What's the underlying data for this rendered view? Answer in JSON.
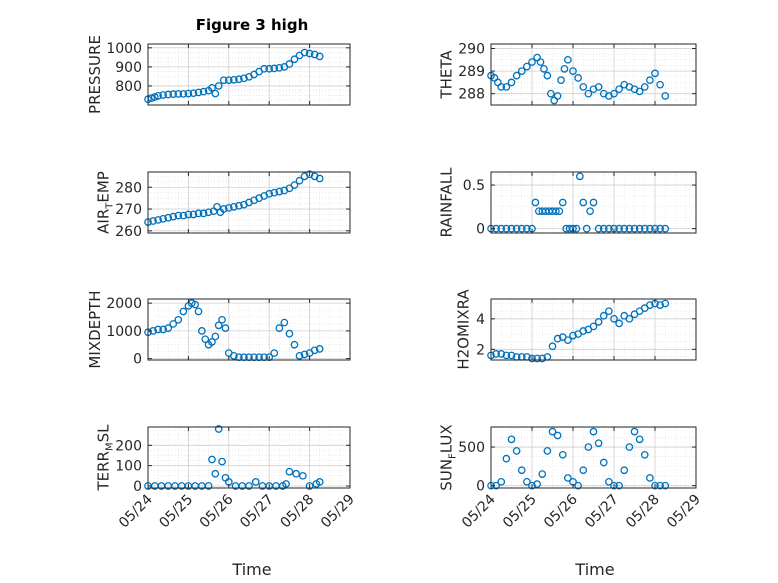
{
  "figure": {
    "title": "Figure 3 high",
    "xlabel": "Time"
  },
  "x_ticks": [
    "05/24",
    "05/25",
    "05/26",
    "05/27",
    "05/28",
    "05/29"
  ],
  "chart_data": [
    {
      "type": "scatter",
      "ylabel_main": "PRESSURE",
      "ylabel_sub": "",
      "ylim": [
        700,
        1020
      ],
      "yticks": [
        800,
        900,
        1000
      ],
      "x": [
        "2024-05-24 00:00",
        "2024-05-24 02:00",
        "2024-05-24 04:00",
        "2024-05-24 06:00",
        "2024-05-24 09:00",
        "2024-05-24 12:00",
        "2024-05-24 15:00",
        "2024-05-24 18:00",
        "2024-05-24 21:00",
        "2024-05-25 00:00",
        "2024-05-25 03:00",
        "2024-05-25 06:00",
        "2024-05-25 09:00",
        "2024-05-25 12:00",
        "2024-05-25 14:00",
        "2024-05-25 16:00",
        "2024-05-25 18:00",
        "2024-05-25 21:00",
        "2024-05-26 00:00",
        "2024-05-26 03:00",
        "2024-05-26 06:00",
        "2024-05-26 09:00",
        "2024-05-26 12:00",
        "2024-05-26 15:00",
        "2024-05-26 18:00",
        "2024-05-26 21:00",
        "2024-05-27 00:00",
        "2024-05-27 03:00",
        "2024-05-27 06:00",
        "2024-05-27 09:00",
        "2024-05-27 12:00",
        "2024-05-27 15:00",
        "2024-05-27 18:00",
        "2024-05-27 21:00",
        "2024-05-28 00:00",
        "2024-05-28 03:00",
        "2024-05-28 06:00"
      ],
      "y": [
        730,
        736,
        742,
        748,
        752,
        755,
        757,
        758,
        758,
        760,
        762,
        766,
        770,
        775,
        790,
        760,
        800,
        830,
        830,
        832,
        835,
        840,
        848,
        860,
        875,
        890,
        890,
        892,
        895,
        900,
        915,
        940,
        960,
        975,
        970,
        965,
        955
      ]
    },
    {
      "type": "scatter",
      "ylabel_main": "THETA",
      "ylabel_sub": "",
      "ylim": [
        287.5,
        290.2
      ],
      "yticks": [
        288,
        289,
        290
      ],
      "x": [
        "2024-05-24 00:00",
        "2024-05-24 02:00",
        "2024-05-24 04:00",
        "2024-05-24 06:00",
        "2024-05-24 09:00",
        "2024-05-24 12:00",
        "2024-05-24 15:00",
        "2024-05-24 18:00",
        "2024-05-24 21:00",
        "2024-05-25 00:00",
        "2024-05-25 03:00",
        "2024-05-25 05:00",
        "2024-05-25 07:00",
        "2024-05-25 09:00",
        "2024-05-25 11:00",
        "2024-05-25 13:00",
        "2024-05-25 15:00",
        "2024-05-25 17:00",
        "2024-05-25 19:00",
        "2024-05-25 21:00",
        "2024-05-26 00:00",
        "2024-05-26 03:00",
        "2024-05-26 06:00",
        "2024-05-26 09:00",
        "2024-05-26 12:00",
        "2024-05-26 15:00",
        "2024-05-26 18:00",
        "2024-05-26 21:00",
        "2024-05-27 00:00",
        "2024-05-27 03:00",
        "2024-05-27 06:00",
        "2024-05-27 09:00",
        "2024-05-27 12:00",
        "2024-05-27 15:00",
        "2024-05-27 18:00",
        "2024-05-27 21:00",
        "2024-05-28 00:00",
        "2024-05-28 03:00",
        "2024-05-28 06:00"
      ],
      "y": [
        288.8,
        288.7,
        288.5,
        288.3,
        288.3,
        288.5,
        288.8,
        289.0,
        289.2,
        289.4,
        289.6,
        289.4,
        289.1,
        288.8,
        288.0,
        287.7,
        287.9,
        288.6,
        289.1,
        289.5,
        289.0,
        288.7,
        288.3,
        288.0,
        288.2,
        288.3,
        288.0,
        287.9,
        288.0,
        288.2,
        288.4,
        288.3,
        288.2,
        288.1,
        288.3,
        288.6,
        288.9,
        288.4,
        287.9
      ]
    },
    {
      "type": "scatter",
      "ylabel_main": "AIR",
      "ylabel_sub": "T",
      "ylabel_tail": "EMP",
      "ylim": [
        259,
        287
      ],
      "yticks": [
        260,
        270,
        280
      ],
      "x": [
        "2024-05-24 00:00",
        "2024-05-24 03:00",
        "2024-05-24 06:00",
        "2024-05-24 09:00",
        "2024-05-24 12:00",
        "2024-05-24 15:00",
        "2024-05-24 18:00",
        "2024-05-24 21:00",
        "2024-05-25 00:00",
        "2024-05-25 03:00",
        "2024-05-25 06:00",
        "2024-05-25 09:00",
        "2024-05-25 12:00",
        "2024-05-25 15:00",
        "2024-05-25 17:00",
        "2024-05-25 19:00",
        "2024-05-25 21:00",
        "2024-05-26 00:00",
        "2024-05-26 03:00",
        "2024-05-26 06:00",
        "2024-05-26 09:00",
        "2024-05-26 12:00",
        "2024-05-26 15:00",
        "2024-05-26 18:00",
        "2024-05-26 21:00",
        "2024-05-27 00:00",
        "2024-05-27 03:00",
        "2024-05-27 06:00",
        "2024-05-27 09:00",
        "2024-05-27 12:00",
        "2024-05-27 15:00",
        "2024-05-27 18:00",
        "2024-05-27 21:00",
        "2024-05-28 00:00",
        "2024-05-28 03:00",
        "2024-05-28 06:00"
      ],
      "y": [
        264,
        264.5,
        265,
        265.5,
        266,
        266.5,
        267,
        267,
        267.5,
        267.5,
        268,
        268,
        268.5,
        269,
        271,
        268.5,
        270,
        270.5,
        271,
        271.5,
        272,
        273,
        274,
        275,
        276,
        277,
        277.5,
        278,
        278.5,
        279.5,
        281,
        283,
        285,
        286,
        285,
        284
      ]
    },
    {
      "type": "scatter",
      "ylabel_main": "RAINFALL",
      "ylabel_sub": "",
      "ylim": [
        -0.05,
        0.65
      ],
      "yticks": [
        0,
        0.5
      ],
      "x": [
        "2024-05-24 00:00",
        "2024-05-24 03:00",
        "2024-05-24 06:00",
        "2024-05-24 09:00",
        "2024-05-24 12:00",
        "2024-05-24 15:00",
        "2024-05-24 18:00",
        "2024-05-24 21:00",
        "2024-05-25 00:00",
        "2024-05-25 02:00",
        "2024-05-25 04:00",
        "2024-05-25 06:00",
        "2024-05-25 08:00",
        "2024-05-25 10:00",
        "2024-05-25 12:00",
        "2024-05-25 14:00",
        "2024-05-25 16:00",
        "2024-05-25 18:00",
        "2024-05-25 20:00",
        "2024-05-25 22:00",
        "2024-05-26 00:00",
        "2024-05-26 02:00",
        "2024-05-26 04:00",
        "2024-05-26 06:00",
        "2024-05-26 08:00",
        "2024-05-26 10:00",
        "2024-05-26 12:00",
        "2024-05-26 15:00",
        "2024-05-26 18:00",
        "2024-05-26 21:00",
        "2024-05-27 00:00",
        "2024-05-27 03:00",
        "2024-05-27 06:00",
        "2024-05-27 09:00",
        "2024-05-27 12:00",
        "2024-05-27 15:00",
        "2024-05-27 18:00",
        "2024-05-27 21:00",
        "2024-05-28 00:00",
        "2024-05-28 03:00",
        "2024-05-28 06:00"
      ],
      "y": [
        0,
        0,
        0,
        0,
        0,
        0,
        0,
        0,
        0,
        0.3,
        0.2,
        0.2,
        0.2,
        0.2,
        0.2,
        0.2,
        0.2,
        0.3,
        0,
        0,
        0,
        0,
        0.6,
        0.3,
        0,
        0.2,
        0.3,
        0,
        0,
        0,
        0,
        0,
        0,
        0,
        0,
        0,
        0,
        0,
        0,
        0,
        0
      ]
    },
    {
      "type": "scatter",
      "ylabel_main": "MIXDEPTH",
      "ylabel_sub": "",
      "ylim": [
        -50,
        2150
      ],
      "yticks": [
        0,
        1000,
        2000
      ],
      "x": [
        "2024-05-24 00:00",
        "2024-05-24 03:00",
        "2024-05-24 06:00",
        "2024-05-24 09:00",
        "2024-05-24 12:00",
        "2024-05-24 15:00",
        "2024-05-24 18:00",
        "2024-05-24 21:00",
        "2024-05-25 00:00",
        "2024-05-25 02:00",
        "2024-05-25 04:00",
        "2024-05-25 06:00",
        "2024-05-25 08:00",
        "2024-05-25 10:00",
        "2024-05-25 12:00",
        "2024-05-25 14:00",
        "2024-05-25 16:00",
        "2024-05-25 18:00",
        "2024-05-25 20:00",
        "2024-05-25 22:00",
        "2024-05-26 00:00",
        "2024-05-26 03:00",
        "2024-05-26 06:00",
        "2024-05-26 09:00",
        "2024-05-26 12:00",
        "2024-05-26 15:00",
        "2024-05-26 18:00",
        "2024-05-26 21:00",
        "2024-05-27 00:00",
        "2024-05-27 03:00",
        "2024-05-27 06:00",
        "2024-05-27 09:00",
        "2024-05-27 12:00",
        "2024-05-27 15:00",
        "2024-05-27 18:00",
        "2024-05-27 21:00",
        "2024-05-28 00:00",
        "2024-05-28 03:00",
        "2024-05-28 06:00"
      ],
      "y": [
        950,
        1000,
        1050,
        1050,
        1100,
        1250,
        1400,
        1700,
        1900,
        2000,
        1950,
        1700,
        1000,
        700,
        500,
        600,
        800,
        1200,
        1400,
        1100,
        200,
        100,
        50,
        50,
        50,
        50,
        50,
        50,
        50,
        200,
        1100,
        1300,
        900,
        500,
        100,
        150,
        200,
        300,
        350
      ]
    },
    {
      "type": "scatter",
      "ylabel_main": "H2OMIXRA",
      "ylabel_sub": "",
      "ylim": [
        1.3,
        5.3
      ],
      "yticks": [
        2,
        4
      ],
      "x": [
        "2024-05-24 00:00",
        "2024-05-24 03:00",
        "2024-05-24 06:00",
        "2024-05-24 09:00",
        "2024-05-24 12:00",
        "2024-05-24 15:00",
        "2024-05-24 18:00",
        "2024-05-24 21:00",
        "2024-05-25 00:00",
        "2024-05-25 03:00",
        "2024-05-25 06:00",
        "2024-05-25 09:00",
        "2024-05-25 12:00",
        "2024-05-25 15:00",
        "2024-05-25 18:00",
        "2024-05-25 21:00",
        "2024-05-26 00:00",
        "2024-05-26 03:00",
        "2024-05-26 06:00",
        "2024-05-26 09:00",
        "2024-05-26 12:00",
        "2024-05-26 15:00",
        "2024-05-26 18:00",
        "2024-05-26 21:00",
        "2024-05-27 00:00",
        "2024-05-27 03:00",
        "2024-05-27 06:00",
        "2024-05-27 09:00",
        "2024-05-27 12:00",
        "2024-05-27 15:00",
        "2024-05-27 18:00",
        "2024-05-27 21:00",
        "2024-05-28 00:00",
        "2024-05-28 03:00",
        "2024-05-28 06:00"
      ],
      "y": [
        1.6,
        1.7,
        1.7,
        1.6,
        1.6,
        1.5,
        1.5,
        1.5,
        1.4,
        1.4,
        1.4,
        1.5,
        2.2,
        2.7,
        2.8,
        2.6,
        2.9,
        3.0,
        3.2,
        3.3,
        3.5,
        3.8,
        4.2,
        4.5,
        4.0,
        3.7,
        4.2,
        4.0,
        4.3,
        4.5,
        4.7,
        4.9,
        5.0,
        4.9,
        5.0
      ]
    },
    {
      "type": "scatter",
      "ylabel_main": "TERR",
      "ylabel_sub": "M",
      "ylabel_tail": "SL",
      "ylim": [
        -10,
        290
      ],
      "yticks": [
        0,
        100,
        200
      ],
      "x": [
        "2024-05-24 00:00",
        "2024-05-24 04:00",
        "2024-05-24 08:00",
        "2024-05-24 12:00",
        "2024-05-24 16:00",
        "2024-05-24 20:00",
        "2024-05-25 00:00",
        "2024-05-25 04:00",
        "2024-05-25 08:00",
        "2024-05-25 12:00",
        "2024-05-25 14:00",
        "2024-05-25 16:00",
        "2024-05-25 18:00",
        "2024-05-25 20:00",
        "2024-05-25 22:00",
        "2024-05-26 00:00",
        "2024-05-26 04:00",
        "2024-05-26 08:00",
        "2024-05-26 12:00",
        "2024-05-26 16:00",
        "2024-05-26 20:00",
        "2024-05-27 00:00",
        "2024-05-27 04:00",
        "2024-05-27 08:00",
        "2024-05-27 10:00",
        "2024-05-27 12:00",
        "2024-05-27 16:00",
        "2024-05-27 20:00",
        "2024-05-28 00:00",
        "2024-05-28 04:00",
        "2024-05-28 06:00"
      ],
      "y": [
        0,
        0,
        0,
        0,
        0,
        0,
        0,
        0,
        0,
        0,
        130,
        60,
        280,
        120,
        40,
        20,
        0,
        0,
        0,
        20,
        0,
        0,
        0,
        0,
        10,
        70,
        60,
        50,
        0,
        10,
        20
      ]
    },
    {
      "type": "scatter",
      "ylabel_main": "SUN",
      "ylabel_sub": "F",
      "ylabel_tail": "LUX",
      "ylim": [
        -30,
        760
      ],
      "yticks": [
        0,
        500
      ],
      "x": [
        "2024-05-24 00:00",
        "2024-05-24 03:00",
        "2024-05-24 06:00",
        "2024-05-24 09:00",
        "2024-05-24 12:00",
        "2024-05-24 15:00",
        "2024-05-24 18:00",
        "2024-05-24 21:00",
        "2024-05-25 00:00",
        "2024-05-25 03:00",
        "2024-05-25 06:00",
        "2024-05-25 09:00",
        "2024-05-25 12:00",
        "2024-05-25 15:00",
        "2024-05-25 18:00",
        "2024-05-25 21:00",
        "2024-05-26 00:00",
        "2024-05-26 03:00",
        "2024-05-26 06:00",
        "2024-05-26 09:00",
        "2024-05-26 12:00",
        "2024-05-26 15:00",
        "2024-05-26 18:00",
        "2024-05-26 21:00",
        "2024-05-27 00:00",
        "2024-05-27 03:00",
        "2024-05-27 06:00",
        "2024-05-27 09:00",
        "2024-05-27 12:00",
        "2024-05-27 15:00",
        "2024-05-27 18:00",
        "2024-05-27 21:00",
        "2024-05-28 00:00",
        "2024-05-28 03:00",
        "2024-05-28 06:00"
      ],
      "y": [
        0,
        0,
        50,
        350,
        600,
        450,
        200,
        50,
        0,
        20,
        150,
        450,
        700,
        650,
        400,
        100,
        50,
        0,
        200,
        500,
        700,
        550,
        300,
        50,
        0,
        0,
        200,
        500,
        700,
        600,
        400,
        100,
        0,
        0,
        0
      ]
    }
  ],
  "colors": {
    "marker": "#0072BD",
    "axis": "#262626",
    "grid": "#dcdcdc"
  }
}
